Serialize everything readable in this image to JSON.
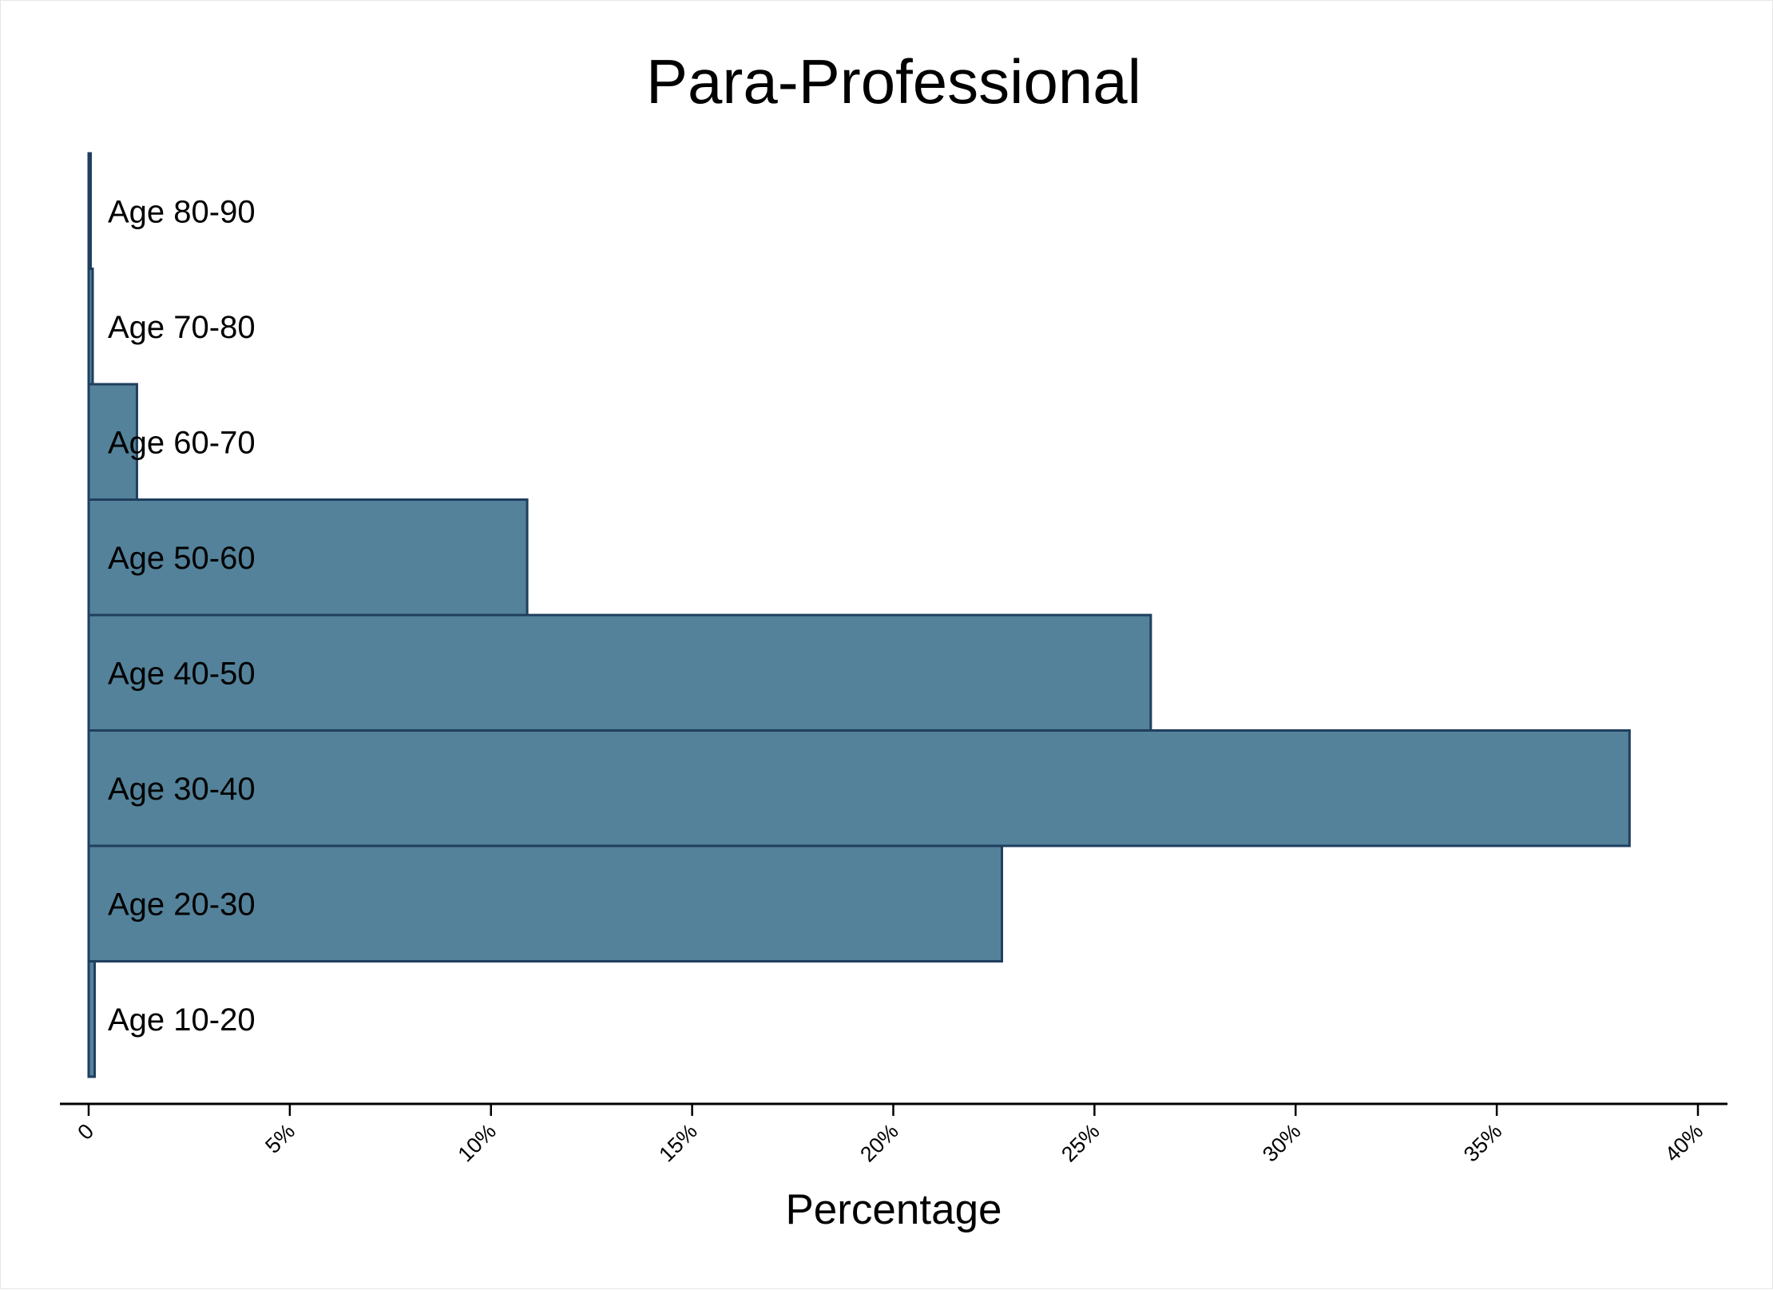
{
  "chart_data": {
    "type": "bar",
    "orientation": "horizontal",
    "title": "Para-Professional",
    "xlabel": "Percentage",
    "ylabel": "",
    "categories": [
      "Age 10-20",
      "Age 20-30",
      "Age 30-40",
      "Age 40-50",
      "Age 50-60",
      "Age 60-70",
      "Age 70-80",
      "Age 80-90"
    ],
    "values": [
      0.15,
      22.7,
      38.3,
      26.4,
      10.9,
      1.2,
      0.1,
      0.05
    ],
    "xlim": [
      0,
      40
    ],
    "xticks": [
      0,
      5,
      10,
      15,
      20,
      25,
      30,
      35,
      40
    ],
    "xtick_labels": [
      "0",
      "5%",
      "10%",
      "15%",
      "20%",
      "25%",
      "30%",
      "35%",
      "40%"
    ],
    "grid": false,
    "colors": {
      "bar_fill": "#53829a",
      "bar_edge": "#1f3f5f"
    }
  }
}
